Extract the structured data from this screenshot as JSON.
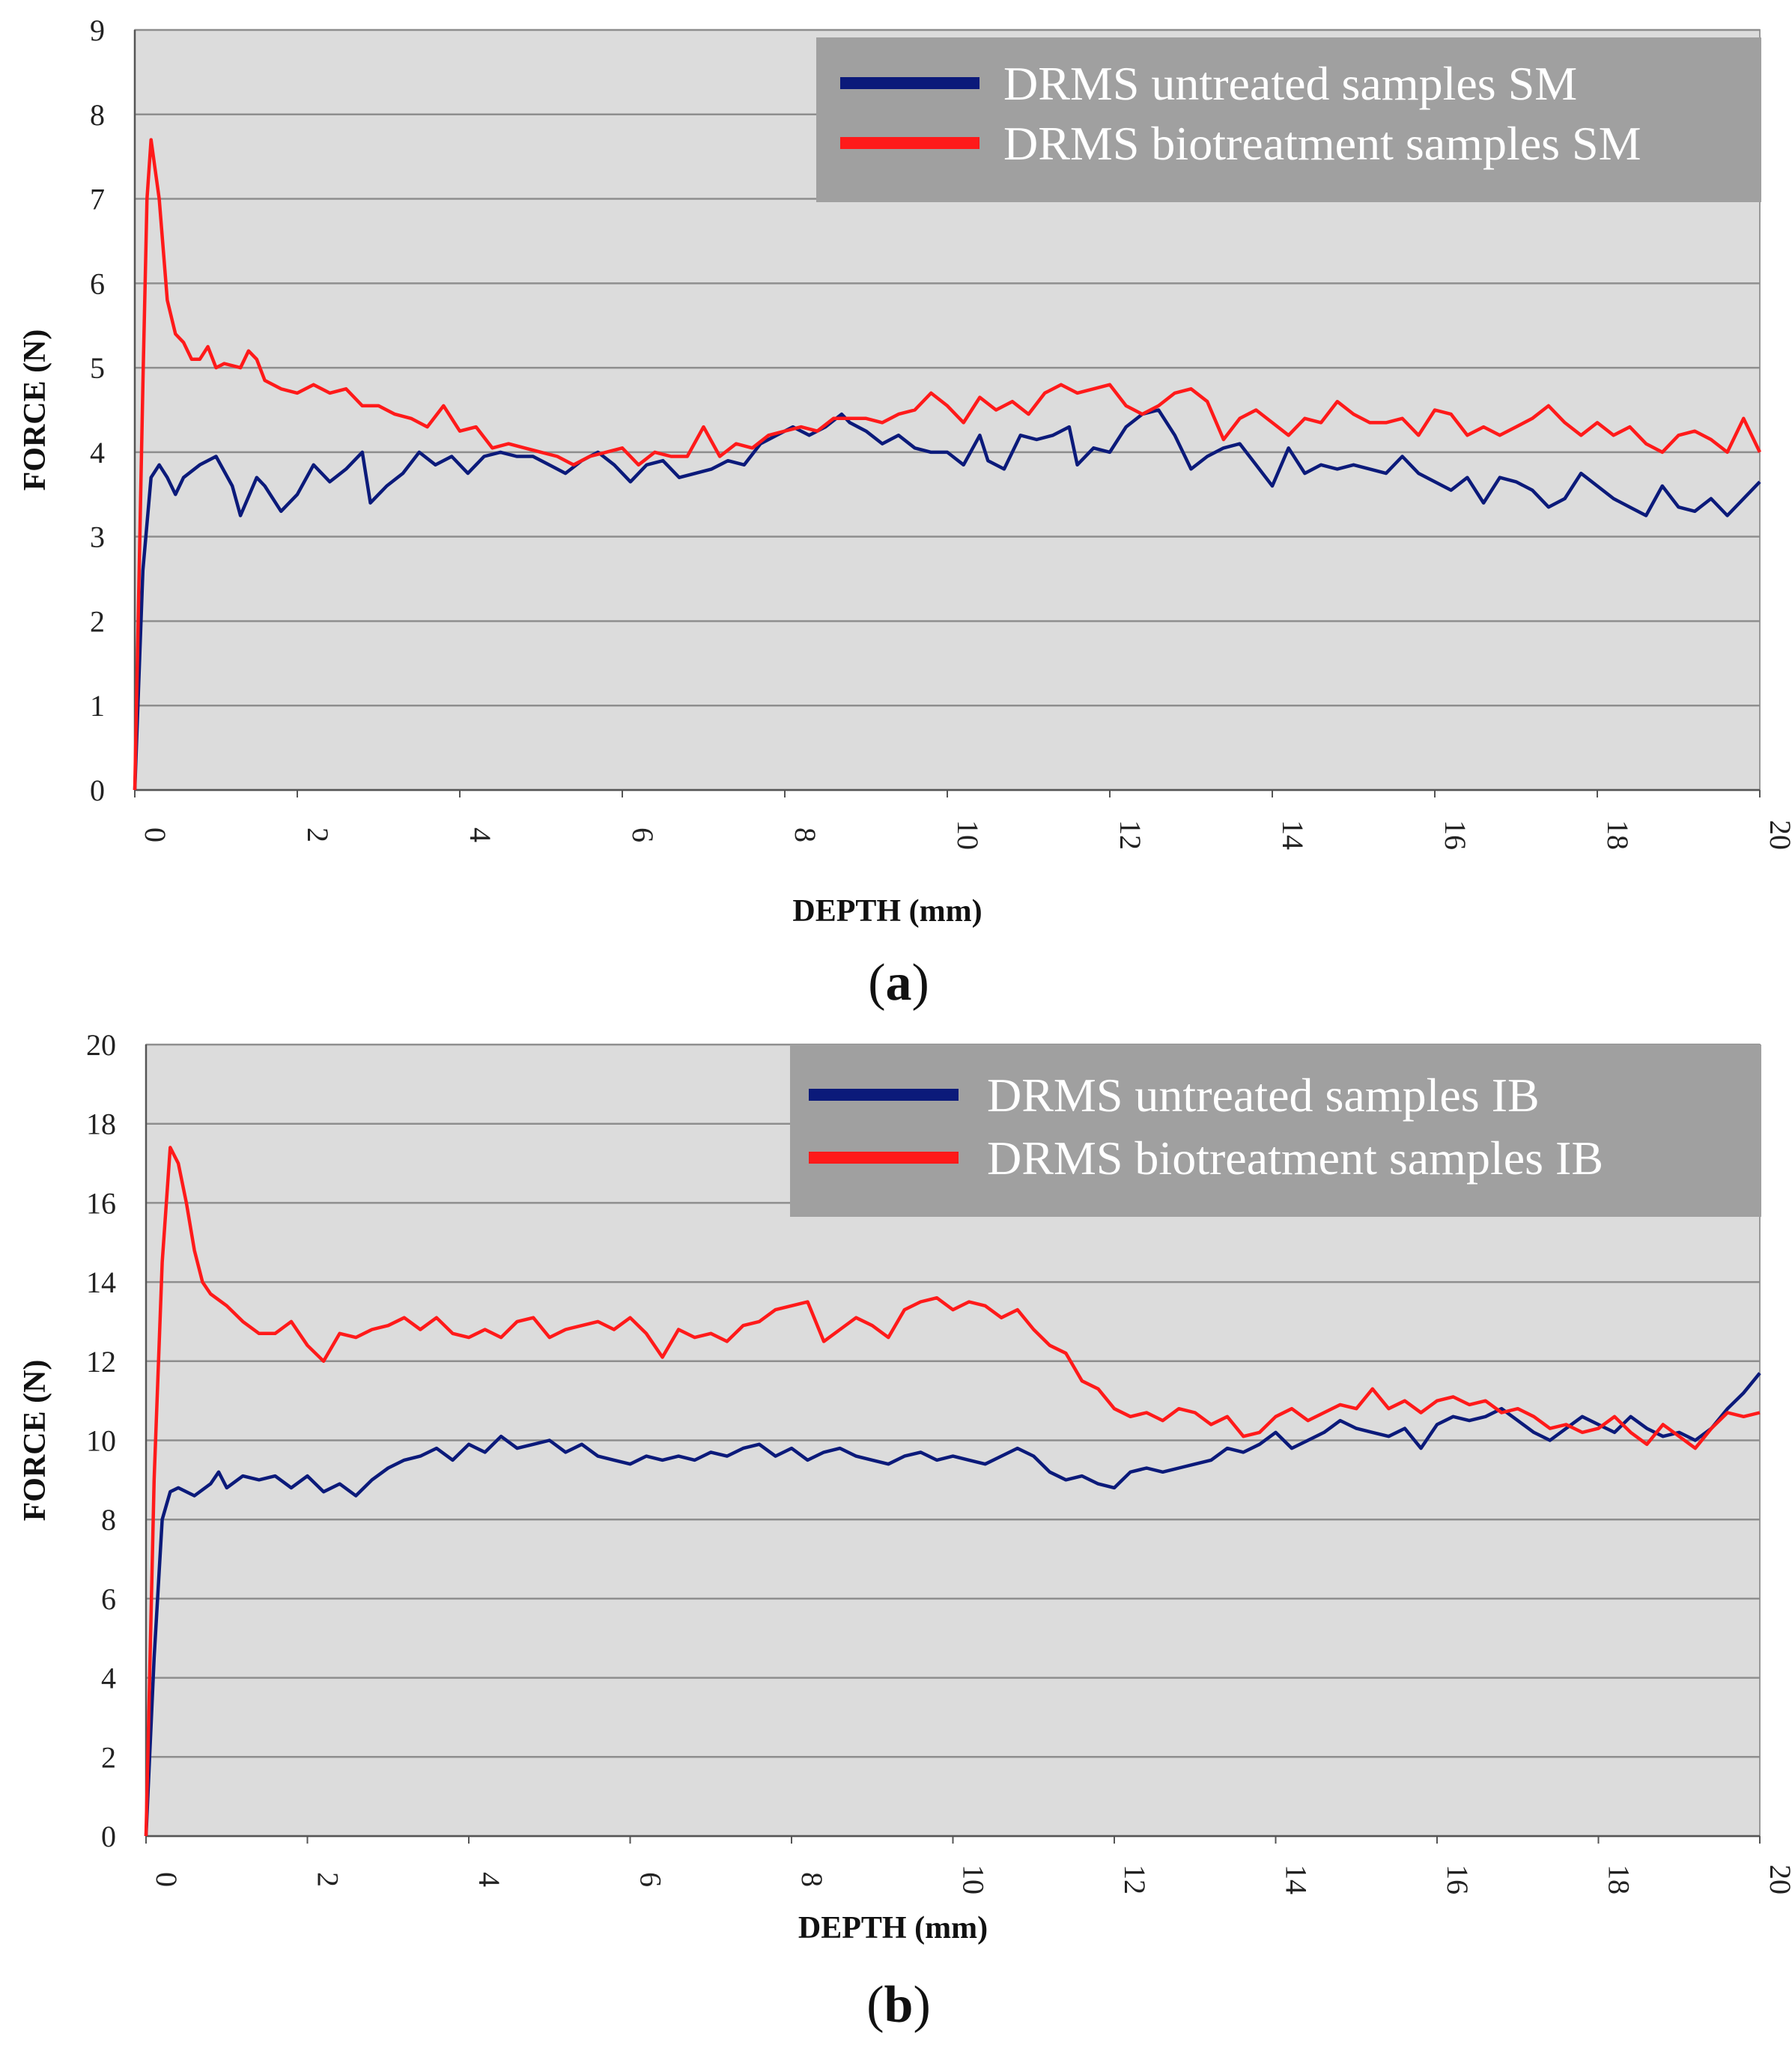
{
  "colors": {
    "untreated": "#0b1a7a",
    "biotreatment": "#ff1a1a",
    "plot_bg": "#dcdcdc",
    "legend_bg": "#a0a0a0",
    "grid": "#8e8e8e"
  },
  "chart_data": [
    {
      "type": "line",
      "panel": "a",
      "xlabel": "DEPTH (mm)",
      "ylabel": "FORCE (N)",
      "xlim": [
        0,
        20
      ],
      "ylim": [
        0,
        9
      ],
      "xticks": [
        "0",
        "2",
        "4",
        "6",
        "8",
        "10",
        "12",
        "14",
        "16",
        "18",
        "20"
      ],
      "yticks": [
        "0",
        "1",
        "2",
        "3",
        "4",
        "5",
        "6",
        "7",
        "8",
        "9"
      ],
      "legend": {
        "position": "top-right"
      },
      "series": [
        {
          "name": "DRMS untreated samples SM",
          "color": "#0b1a7a",
          "x": [
            0,
            0.1,
            0.2,
            0.3,
            0.4,
            0.5,
            0.6,
            0.8,
            1.0,
            1.2,
            1.3,
            1.5,
            1.6,
            1.8,
            2.0,
            2.2,
            2.4,
            2.6,
            2.8,
            2.9,
            3.1,
            3.3,
            3.5,
            3.7,
            3.9,
            4.1,
            4.3,
            4.5,
            4.7,
            4.9,
            5.1,
            5.3,
            5.5,
            5.7,
            5.9,
            6.1,
            6.3,
            6.5,
            6.7,
            6.9,
            7.1,
            7.3,
            7.5,
            7.7,
            7.9,
            8.1,
            8.3,
            8.5,
            8.7,
            8.8,
            9.0,
            9.2,
            9.4,
            9.6,
            9.8,
            10.0,
            10.2,
            10.4,
            10.5,
            10.7,
            10.9,
            11.1,
            11.3,
            11.5,
            11.6,
            11.8,
            12.0,
            12.2,
            12.4,
            12.6,
            12.8,
            13.0,
            13.2,
            13.4,
            13.6,
            13.8,
            14.0,
            14.2,
            14.4,
            14.6,
            14.8,
            15.0,
            15.2,
            15.4,
            15.6,
            15.8,
            16.0,
            16.2,
            16.4,
            16.6,
            16.8,
            17.0,
            17.2,
            17.4,
            17.6,
            17.8,
            18.0,
            18.2,
            18.4,
            18.6,
            18.8,
            19.0,
            19.2,
            19.4,
            19.6,
            19.8,
            20.0
          ],
          "y": [
            0,
            2.6,
            3.7,
            3.85,
            3.7,
            3.5,
            3.7,
            3.85,
            3.95,
            3.6,
            3.25,
            3.7,
            3.6,
            3.3,
            3.5,
            3.85,
            3.65,
            3.8,
            4.0,
            3.4,
            3.6,
            3.75,
            4.0,
            3.85,
            3.95,
            3.75,
            3.95,
            4.0,
            3.95,
            3.95,
            3.85,
            3.75,
            3.9,
            4.0,
            3.85,
            3.65,
            3.85,
            3.9,
            3.7,
            3.75,
            3.8,
            3.9,
            3.85,
            4.1,
            4.2,
            4.3,
            4.2,
            4.3,
            4.45,
            4.35,
            4.25,
            4.1,
            4.2,
            4.05,
            4.0,
            4.0,
            3.85,
            4.2,
            3.9,
            3.8,
            4.2,
            4.15,
            4.2,
            4.3,
            3.85,
            4.05,
            4.0,
            4.3,
            4.45,
            4.5,
            4.2,
            3.8,
            3.95,
            4.05,
            4.1,
            3.85,
            3.6,
            4.05,
            3.75,
            3.85,
            3.8,
            3.85,
            3.8,
            3.75,
            3.95,
            3.75,
            3.65,
            3.55,
            3.7,
            3.4,
            3.7,
            3.65,
            3.55,
            3.35,
            3.45,
            3.75,
            3.6,
            3.45,
            3.35,
            3.25,
            3.6,
            3.35,
            3.3,
            3.45,
            3.25,
            3.45,
            3.65
          ]
        },
        {
          "name": "DRMS biotreatment samples SM",
          "color": "#ff1a1a",
          "x": [
            0,
            0.1,
            0.15,
            0.2,
            0.3,
            0.4,
            0.5,
            0.6,
            0.7,
            0.8,
            0.9,
            1.0,
            1.1,
            1.3,
            1.4,
            1.5,
            1.6,
            1.8,
            2.0,
            2.2,
            2.4,
            2.6,
            2.8,
            3.0,
            3.2,
            3.4,
            3.6,
            3.8,
            4.0,
            4.2,
            4.4,
            4.6,
            4.8,
            5.0,
            5.2,
            5.4,
            5.6,
            5.8,
            6.0,
            6.2,
            6.4,
            6.6,
            6.8,
            7.0,
            7.2,
            7.4,
            7.6,
            7.8,
            8.0,
            8.2,
            8.4,
            8.6,
            8.8,
            9.0,
            9.2,
            9.4,
            9.6,
            9.8,
            10.0,
            10.2,
            10.4,
            10.6,
            10.8,
            11.0,
            11.2,
            11.4,
            11.6,
            11.8,
            12.0,
            12.2,
            12.4,
            12.6,
            12.8,
            13.0,
            13.2,
            13.4,
            13.6,
            13.8,
            14.0,
            14.2,
            14.4,
            14.6,
            14.8,
            15.0,
            15.2,
            15.4,
            15.6,
            15.8,
            16.0,
            16.2,
            16.4,
            16.6,
            16.8,
            17.0,
            17.2,
            17.4,
            17.6,
            17.8,
            18.0,
            18.2,
            18.4,
            18.6,
            18.8,
            19.0,
            19.2,
            19.4,
            19.6,
            19.8,
            20.0
          ],
          "y": [
            0,
            4.8,
            7.0,
            7.7,
            7.0,
            5.8,
            5.4,
            5.3,
            5.1,
            5.1,
            5.25,
            5.0,
            5.05,
            5.0,
            5.2,
            5.1,
            4.85,
            4.75,
            4.7,
            4.8,
            4.7,
            4.75,
            4.55,
            4.55,
            4.45,
            4.4,
            4.3,
            4.55,
            4.25,
            4.3,
            4.05,
            4.1,
            4.05,
            4.0,
            3.95,
            3.85,
            3.95,
            4.0,
            4.05,
            3.85,
            4.0,
            3.95,
            3.95,
            4.3,
            3.95,
            4.1,
            4.05,
            4.2,
            4.25,
            4.3,
            4.25,
            4.4,
            4.4,
            4.4,
            4.35,
            4.45,
            4.5,
            4.7,
            4.55,
            4.35,
            4.65,
            4.5,
            4.6,
            4.45,
            4.7,
            4.8,
            4.7,
            4.75,
            4.8,
            4.55,
            4.45,
            4.55,
            4.7,
            4.75,
            4.6,
            4.15,
            4.4,
            4.5,
            4.35,
            4.2,
            4.4,
            4.35,
            4.6,
            4.45,
            4.35,
            4.35,
            4.4,
            4.2,
            4.5,
            4.45,
            4.2,
            4.3,
            4.2,
            4.3,
            4.4,
            4.55,
            4.35,
            4.2,
            4.35,
            4.2,
            4.3,
            4.1,
            4.0,
            4.2,
            4.25,
            4.15,
            4.0,
            4.4,
            4.0
          ]
        }
      ]
    },
    {
      "type": "line",
      "panel": "b",
      "xlabel": "DEPTH (mm)",
      "ylabel": "FORCE (N)",
      "xlim": [
        0,
        20
      ],
      "ylim": [
        0,
        20
      ],
      "xticks": [
        "0",
        "2",
        "4",
        "6",
        "8",
        "10",
        "12",
        "14",
        "16",
        "18",
        "20"
      ],
      "yticks": [
        "0",
        "2",
        "4",
        "6",
        "8",
        "10",
        "12",
        "14",
        "16",
        "18",
        "20"
      ],
      "legend": {
        "position": "top-right"
      },
      "series": [
        {
          "name": "DRMS untreated samples IB",
          "color": "#0b1a7a",
          "x": [
            0,
            0.1,
            0.2,
            0.3,
            0.4,
            0.6,
            0.8,
            0.9,
            1.0,
            1.2,
            1.4,
            1.6,
            1.8,
            2.0,
            2.2,
            2.4,
            2.6,
            2.8,
            3.0,
            3.2,
            3.4,
            3.6,
            3.8,
            4.0,
            4.2,
            4.4,
            4.6,
            4.8,
            5.0,
            5.2,
            5.4,
            5.6,
            5.8,
            6.0,
            6.2,
            6.4,
            6.6,
            6.8,
            7.0,
            7.2,
            7.4,
            7.6,
            7.8,
            8.0,
            8.2,
            8.4,
            8.6,
            8.8,
            9.0,
            9.2,
            9.4,
            9.6,
            9.8,
            10.0,
            10.2,
            10.4,
            10.6,
            10.8,
            11.0,
            11.2,
            11.4,
            11.6,
            11.8,
            12.0,
            12.2,
            12.4,
            12.6,
            12.8,
            13.0,
            13.2,
            13.4,
            13.6,
            13.8,
            14.0,
            14.2,
            14.4,
            14.6,
            14.8,
            15.0,
            15.2,
            15.4,
            15.6,
            15.8,
            16.0,
            16.2,
            16.4,
            16.6,
            16.8,
            17.0,
            17.2,
            17.4,
            17.6,
            17.8,
            18.0,
            18.2,
            18.4,
            18.6,
            18.8,
            19.0,
            19.2,
            19.4,
            19.6,
            19.8,
            20.0
          ],
          "y": [
            0,
            4.5,
            8.0,
            8.7,
            8.8,
            8.6,
            8.9,
            9.2,
            8.8,
            9.1,
            9.0,
            9.1,
            8.8,
            9.1,
            8.7,
            8.9,
            8.6,
            9.0,
            9.3,
            9.5,
            9.6,
            9.8,
            9.5,
            9.9,
            9.7,
            10.1,
            9.8,
            9.9,
            10.0,
            9.7,
            9.9,
            9.6,
            9.5,
            9.4,
            9.6,
            9.5,
            9.6,
            9.5,
            9.7,
            9.6,
            9.8,
            9.9,
            9.6,
            9.8,
            9.5,
            9.7,
            9.8,
            9.6,
            9.5,
            9.4,
            9.6,
            9.7,
            9.5,
            9.6,
            9.5,
            9.4,
            9.6,
            9.8,
            9.6,
            9.2,
            9.0,
            9.1,
            8.9,
            8.8,
            9.2,
            9.3,
            9.2,
            9.3,
            9.4,
            9.5,
            9.8,
            9.7,
            9.9,
            10.2,
            9.8,
            10.0,
            10.2,
            10.5,
            10.3,
            10.2,
            10.1,
            10.3,
            9.8,
            10.4,
            10.6,
            10.5,
            10.6,
            10.8,
            10.5,
            10.2,
            10.0,
            10.3,
            10.6,
            10.4,
            10.2,
            10.6,
            10.3,
            10.1,
            10.2,
            10.0,
            10.3,
            10.8,
            11.2,
            11.7
          ]
        },
        {
          "name": "DRMS biotreatment samples IB",
          "color": "#ff1a1a",
          "x": [
            0,
            0.1,
            0.2,
            0.3,
            0.4,
            0.5,
            0.6,
            0.7,
            0.8,
            1.0,
            1.2,
            1.4,
            1.6,
            1.8,
            2.0,
            2.2,
            2.4,
            2.6,
            2.8,
            3.0,
            3.2,
            3.4,
            3.6,
            3.8,
            4.0,
            4.2,
            4.4,
            4.6,
            4.8,
            5.0,
            5.2,
            5.4,
            5.6,
            5.8,
            6.0,
            6.2,
            6.4,
            6.6,
            6.8,
            7.0,
            7.2,
            7.4,
            7.6,
            7.8,
            8.0,
            8.2,
            8.4,
            8.6,
            8.8,
            9.0,
            9.2,
            9.4,
            9.6,
            9.8,
            10.0,
            10.2,
            10.4,
            10.6,
            10.8,
            11.0,
            11.2,
            11.4,
            11.6,
            11.8,
            12.0,
            12.2,
            12.4,
            12.6,
            12.8,
            13.0,
            13.2,
            13.4,
            13.6,
            13.8,
            14.0,
            14.2,
            14.4,
            14.6,
            14.8,
            15.0,
            15.2,
            15.4,
            15.6,
            15.8,
            16.0,
            16.2,
            16.4,
            16.6,
            16.8,
            17.0,
            17.2,
            17.4,
            17.6,
            17.8,
            18.0,
            18.2,
            18.4,
            18.6,
            18.8,
            19.0,
            19.2,
            19.4,
            19.6,
            19.8,
            20.0
          ],
          "y": [
            0,
            9.0,
            14.5,
            17.4,
            17.0,
            16.0,
            14.8,
            14.0,
            13.7,
            13.4,
            13.0,
            12.7,
            12.7,
            13.0,
            12.4,
            12.0,
            12.7,
            12.6,
            12.8,
            12.9,
            13.1,
            12.8,
            13.1,
            12.7,
            12.6,
            12.8,
            12.6,
            13.0,
            13.1,
            12.6,
            12.8,
            12.9,
            13.0,
            12.8,
            13.1,
            12.7,
            12.1,
            12.8,
            12.6,
            12.7,
            12.5,
            12.9,
            13.0,
            13.3,
            13.4,
            13.5,
            12.5,
            12.8,
            13.1,
            12.9,
            12.6,
            13.3,
            13.5,
            13.6,
            13.3,
            13.5,
            13.4,
            13.1,
            13.3,
            12.8,
            12.4,
            12.2,
            11.5,
            11.3,
            10.8,
            10.6,
            10.7,
            10.5,
            10.8,
            10.7,
            10.4,
            10.6,
            10.1,
            10.2,
            10.6,
            10.8,
            10.5,
            10.7,
            10.9,
            10.8,
            11.3,
            10.8,
            11.0,
            10.7,
            11.0,
            11.1,
            10.9,
            11.0,
            10.7,
            10.8,
            10.6,
            10.3,
            10.4,
            10.2,
            10.3,
            10.6,
            10.2,
            9.9,
            10.4,
            10.1,
            9.8,
            10.3,
            10.7,
            10.6,
            10.7
          ]
        }
      ]
    }
  ]
}
